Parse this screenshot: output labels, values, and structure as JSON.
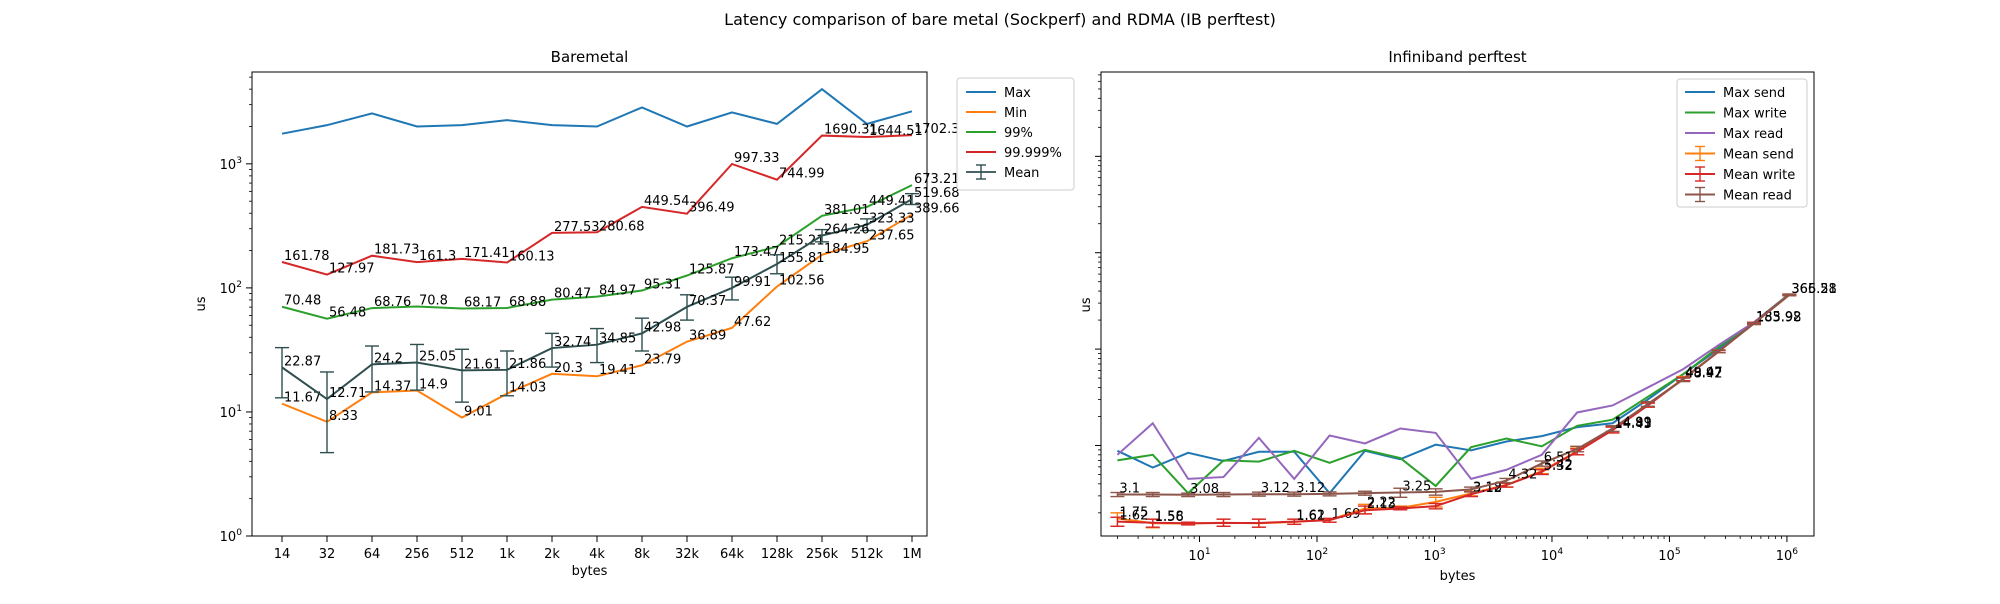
{
  "figure": {
    "suptitle": "Latency comparison of bare metal (Sockperf) and RDMA (IB perftest)"
  },
  "chart_data": [
    {
      "type": "line",
      "title": "Baremetal",
      "xlabel": "bytes",
      "ylabel": "us",
      "yscale": "log",
      "ylim": [
        1,
        5500
      ],
      "yticks": [
        1,
        10,
        100,
        1000
      ],
      "ytick_labels": [
        "10^0",
        "10^1",
        "10^2",
        "10^3"
      ],
      "categories": [
        "14",
        "32",
        "64",
        "256",
        "512",
        "1k",
        "2k",
        "4k",
        "8k",
        "32k",
        "64k",
        "128k",
        "256k",
        "512k",
        "1M"
      ],
      "legend_position": "outside-right",
      "series": [
        {
          "name": "Max",
          "color": "#1f77b4",
          "values": [
            1750,
            2050,
            2550,
            2000,
            2050,
            2250,
            2050,
            2000,
            2850,
            2000,
            2600,
            2100,
            4000,
            2100,
            2650
          ],
          "labels": []
        },
        {
          "name": "Min",
          "color": "#ff7f0e",
          "values": [
            11.67,
            8.33,
            14.37,
            14.9,
            9.01,
            14.03,
            20.3,
            19.41,
            23.79,
            36.89,
            47.62,
            102.56,
            184.95,
            237.65,
            389.66
          ],
          "labels": [
            "11.67",
            "8.33",
            "14.37",
            "14.9",
            "9.01",
            "14.03",
            "20.3",
            "19.41",
            "23.79",
            "36.89",
            "47.62",
            "102.56",
            "184.95",
            "237.65",
            "389.66"
          ]
        },
        {
          "name": "99%",
          "color": "#2ca02c",
          "values": [
            70.48,
            56.48,
            68.76,
            70.8,
            68.17,
            68.88,
            80.47,
            84.97,
            95.31,
            125.87,
            173.47,
            215.21,
            381.01,
            449.41,
            673.21
          ],
          "labels": [
            "70.48",
            "56.48",
            "68.76",
            "70.8",
            "68.17",
            "68.88",
            "80.47",
            "84.97",
            "95.31",
            "125.87",
            "173.47",
            "215.21",
            "381.01",
            "449.41",
            "673.21"
          ]
        },
        {
          "name": "99.999%",
          "color": "#d62728",
          "values": [
            161.78,
            127.97,
            181.73,
            161.3,
            171.41,
            160.13,
            277.53,
            280.68,
            449.54,
            396.49,
            997.33,
            744.99,
            1690.31,
            1644.51,
            1702.33
          ],
          "labels": [
            "161.78",
            "127.97",
            "181.73",
            "161.3",
            "171.41",
            "160.13",
            "277.53",
            "280.68",
            "449.54",
            "396.49",
            "997.33",
            "744.99",
            "1690.31",
            "1644.51",
            "1702.33"
          ]
        },
        {
          "name": "Mean",
          "color": "#2f4f4f",
          "errorbar": true,
          "values": [
            22.87,
            12.71,
            24.2,
            25.05,
            21.61,
            21.86,
            32.74,
            34.85,
            42.98,
            70.37,
            99.91,
            155.81,
            264.26,
            323.33,
            519.68
          ],
          "err_low": [
            13,
            4.7,
            14.5,
            15,
            12,
            13.5,
            23,
            25,
            31,
            55,
            80,
            130,
            235,
            290,
            470
          ],
          "err_high": [
            33,
            21,
            34,
            35,
            32,
            31,
            43,
            47,
            57,
            88,
            122,
            185,
            295,
            360,
            575
          ],
          "labels": [
            "22.87",
            "12.71",
            "24.2",
            "25.05",
            "21.61",
            "21.86",
            "32.74",
            "34.85",
            "42.98",
            "70.37",
            "99.91",
            "155.81",
            "264.26",
            "323.33",
            "519.68"
          ]
        }
      ]
    },
    {
      "type": "line",
      "title": "Infiniband perftest",
      "xlabel": "bytes",
      "ylabel": "us",
      "xscale": "log",
      "yscale": "log",
      "xlim": [
        1.45,
        1700000.0
      ],
      "ylim": [
        1.15,
        75000
      ],
      "xticks": [
        10,
        100,
        1000,
        10000,
        100000,
        1000000
      ],
      "xtick_labels": [
        "10^1",
        "10^2",
        "10^3",
        "10^4",
        "10^5",
        "10^6"
      ],
      "x": [
        2,
        4,
        8,
        16,
        32,
        64,
        128,
        256,
        512,
        1024,
        2048,
        4096,
        8192,
        16384,
        32768,
        65536,
        131072,
        262144,
        524288,
        1048576
      ],
      "legend_position": "upper-right",
      "series": [
        {
          "name": "Max send",
          "color": "#1f77b4",
          "values": [
            8.8,
            5.9,
            8.4,
            6.9,
            8.6,
            8.6,
            3.2,
            8.8,
            7.2,
            10.2,
            8.9,
            11,
            12.5,
            15.5,
            17,
            30,
            55,
            100,
            185,
            372
          ],
          "labels": []
        },
        {
          "name": "Max write",
          "color": "#2ca02c",
          "values": [
            7,
            8,
            3.2,
            7,
            6.8,
            8.8,
            6.6,
            9,
            7.4,
            3.8,
            9.6,
            11.8,
            9.8,
            16,
            18.5,
            32,
            55,
            105,
            190,
            375
          ],
          "labels": []
        },
        {
          "name": "Max read",
          "color": "#9467bd",
          "values": [
            8,
            17,
            4.5,
            4.7,
            12,
            4.5,
            12.7,
            10.5,
            15,
            13.5,
            4.5,
            5.6,
            8,
            22,
            26,
            40,
            62,
            110,
            190,
            370
          ],
          "labels": []
        },
        {
          "name": "Mean send",
          "color": "#ff7f0e",
          "errorbar": true,
          "values": [
            1.75,
            1.56,
            1.55,
            1.58,
            1.56,
            1.61,
            1.69,
            2.22,
            2.25,
            2.6,
            3.18,
            3.9,
            5.42,
            8.7,
            14.81,
            26.5,
            49.47,
            95,
            183.98,
            365.58
          ],
          "err_low": [
            1.45,
            1.4,
            1.5,
            1.45,
            1.42,
            1.52,
            1.6,
            1.95,
            2.15,
            2.3,
            3.0,
            3.7,
            5.1,
            8.0,
            13.5,
            25,
            47,
            92,
            180,
            358
          ],
          "err_high": [
            2.0,
            1.72,
            1.6,
            1.72,
            1.72,
            1.72,
            1.75,
            2.45,
            2.35,
            2.9,
            3.35,
            4.1,
            5.8,
            9.4,
            16,
            28,
            52,
            98,
            188,
            372
          ],
          "labels": [
            "1.75",
            "1.56",
            "",
            "",
            "",
            "1.61",
            "1.69",
            "2.22",
            "",
            "",
            "3.18",
            "",
            "5.42",
            "",
            "14.81",
            "",
            "49.47",
            "",
            "183.98",
            "365.58"
          ]
        },
        {
          "name": "Mean write",
          "color": "#d62728",
          "errorbar": true,
          "values": [
            1.62,
            1.58,
            1.56,
            1.57,
            1.57,
            1.62,
            1.68,
            2.13,
            2.22,
            2.35,
            3.12,
            3.88,
            5.32,
            8.6,
            14.43,
            26,
            48.97,
            94,
            185.92,
            366.21
          ],
          "err_low": [
            1.45,
            1.42,
            1.5,
            1.45,
            1.42,
            1.52,
            1.6,
            1.95,
            2.15,
            2.2,
            2.95,
            3.7,
            5.0,
            8.0,
            13.5,
            25,
            47,
            92,
            182,
            360
          ],
          "err_high": [
            1.8,
            1.72,
            1.6,
            1.72,
            1.72,
            1.72,
            1.75,
            2.35,
            2.3,
            2.5,
            3.3,
            4.05,
            5.6,
            9.2,
            15.5,
            27.5,
            51,
            97,
            190,
            372
          ],
          "labels": [
            "1.62",
            "1.58",
            "",
            "",
            "",
            "1.62",
            "",
            "2.13",
            "",
            "",
            "3.12",
            "",
            "5.32",
            "",
            "14.43",
            "",
            "48.97",
            "",
            "185.92",
            "366.21"
          ]
        },
        {
          "name": "Mean read",
          "color": "#8c564b",
          "errorbar": true,
          "values": [
            3.1,
            3.1,
            3.08,
            3.1,
            3.12,
            3.12,
            3.15,
            3.2,
            3.25,
            3.3,
            3.5,
            4.32,
            6.51,
            9.2,
            14.99,
            27,
            48.42,
            95,
            184.5,
            365.0
          ],
          "err_low": [
            2.95,
            2.95,
            2.95,
            2.95,
            2.98,
            2.98,
            3.0,
            3.05,
            2.9,
            3.05,
            3.3,
            4.1,
            6.1,
            8.6,
            14.0,
            25.5,
            46,
            92,
            180,
            358
          ],
          "err_high": [
            3.25,
            3.25,
            3.2,
            3.25,
            3.28,
            3.28,
            3.3,
            3.35,
            3.6,
            3.55,
            3.7,
            4.55,
            6.9,
            9.8,
            16,
            28.5,
            50,
            98,
            188,
            372
          ],
          "labels": [
            "3.1",
            "",
            "3.08",
            "",
            "3.12",
            "3.12",
            "",
            "",
            "3.25",
            "",
            "",
            "4.32",
            "6.51",
            "",
            "14.99",
            "",
            "48.42",
            "",
            "",
            ""
          ]
        }
      ]
    }
  ]
}
